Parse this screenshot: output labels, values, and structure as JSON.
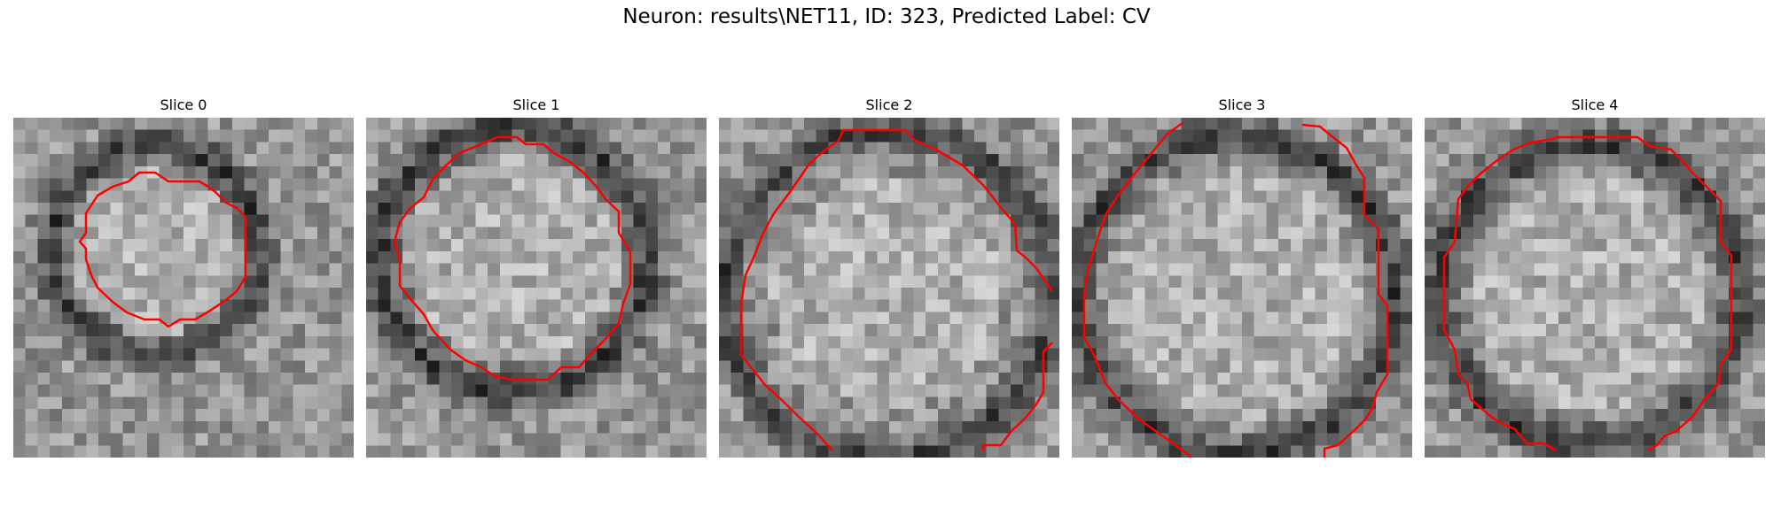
{
  "figure": {
    "title": "Neuron: results\\NET11, ID: 323, Predicted Label: CV"
  },
  "slices": [
    {
      "label": "Slice 0"
    },
    {
      "label": "Slice 1"
    },
    {
      "label": "Slice 2"
    },
    {
      "label": "Slice 3"
    },
    {
      "label": "Slice 4"
    }
  ],
  "colors": {
    "contour": "#ff0000",
    "background": "#ffffff"
  }
}
